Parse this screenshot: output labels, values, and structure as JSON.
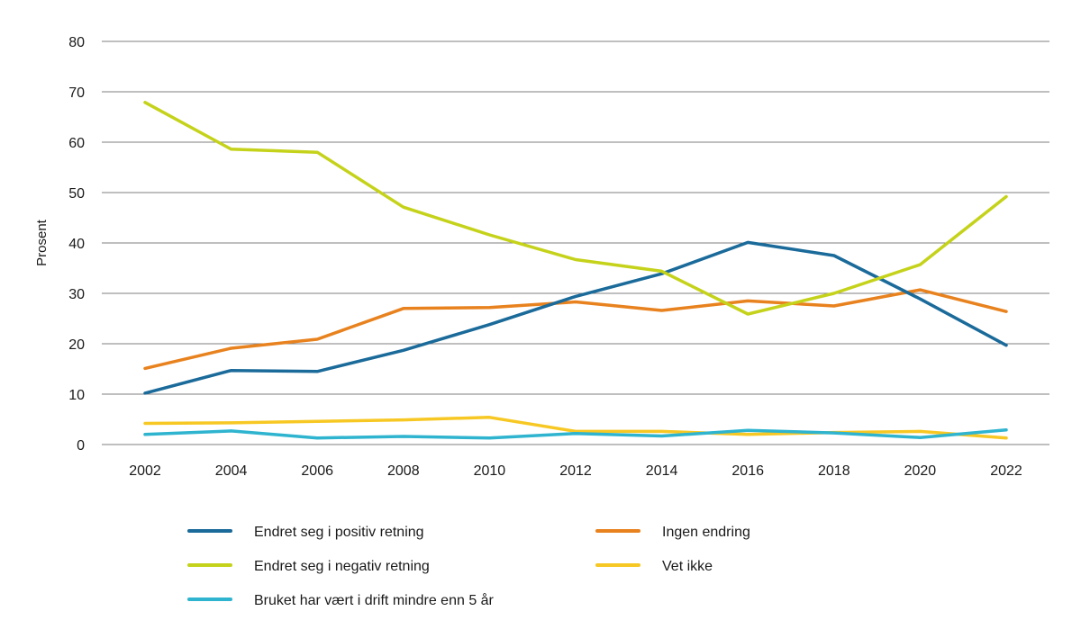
{
  "chart_data": {
    "type": "line",
    "title": "",
    "xlabel": "",
    "ylabel": "Prosent",
    "ylim": [
      0,
      80
    ],
    "yticks": [
      0,
      10,
      20,
      30,
      40,
      50,
      60,
      70,
      80
    ],
    "x": [
      "2002",
      "2004",
      "2006",
      "2008",
      "2010",
      "2012",
      "2014",
      "2016",
      "2018",
      "2020",
      "2022"
    ],
    "grid": true,
    "legend_position": "bottom",
    "series": [
      {
        "name": "Endret seg i positiv retning",
        "color": "#1a6a9a",
        "values": [
          10.2,
          14.7,
          14.5,
          18.7,
          23.8,
          29.4,
          33.9,
          40.1,
          37.5,
          28.9,
          19.7
        ]
      },
      {
        "name": "Ingen endring",
        "color": "#e8821e",
        "values": [
          15.1,
          19.1,
          20.9,
          27.0,
          27.2,
          28.3,
          26.6,
          28.5,
          27.5,
          30.7,
          26.4
        ]
      },
      {
        "name": "Endret seg i negativ retning",
        "color": "#c5d21a",
        "values": [
          67.9,
          58.6,
          58.0,
          47.1,
          41.6,
          36.7,
          34.4,
          25.9,
          30.0,
          35.7,
          49.2
        ]
      },
      {
        "name": "Vet ikke",
        "color": "#f7c823",
        "values": [
          4.2,
          4.3,
          4.6,
          4.9,
          5.4,
          2.6,
          2.6,
          2.0,
          2.4,
          2.6,
          1.3
        ]
      },
      {
        "name": "Bruket har vært i drift mindre enn 5 år",
        "color": "#2fb4cf",
        "values": [
          2.0,
          2.7,
          1.3,
          1.6,
          1.3,
          2.2,
          1.7,
          2.8,
          2.3,
          1.4,
          2.9
        ]
      }
    ]
  }
}
